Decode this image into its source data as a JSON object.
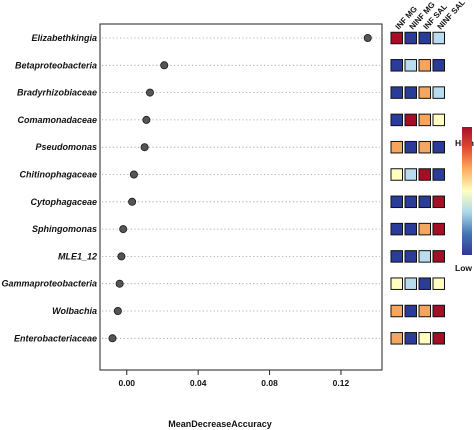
{
  "chart_data": {
    "type": "scatter",
    "title": "",
    "xlabel": "MeanDecreaseAccuracy",
    "ylabel": "",
    "xlim": [
      -0.015,
      0.143
    ],
    "x_ticks": [
      0.0,
      0.04,
      0.08,
      0.12
    ],
    "x_tick_labels": [
      "0.00",
      "0.04",
      "0.08",
      "0.12"
    ],
    "grid": "horizontal dotted lines per taxon",
    "point_color": "#555555",
    "categories": [
      "Elizabethkingia",
      "Betaproteobacteria",
      "Bradyrhizobiaceae",
      "Comamonadaceae",
      "Pseudomonas",
      "Chitinophagaceae",
      "Cytophagaceae",
      "Sphingomonas",
      "MLE1_12",
      "Gammaproteobacteria",
      "Wolbachia",
      "Enterobacteriaceae"
    ],
    "values": [
      0.135,
      0.021,
      0.013,
      0.011,
      0.01,
      0.004,
      0.003,
      -0.002,
      -0.003,
      -0.004,
      -0.005,
      -0.008
    ],
    "heatmap": {
      "columns": [
        "INF MG",
        "NINF MG",
        "INF SAL",
        "NINF SAL"
      ],
      "levels": [
        [
          4,
          0,
          0,
          1
        ],
        [
          0,
          1,
          3,
          0
        ],
        [
          0,
          0,
          3,
          1
        ],
        [
          0,
          4,
          3,
          2
        ],
        [
          3,
          0,
          3,
          0
        ],
        [
          2,
          1,
          4,
          0
        ],
        [
          0,
          0,
          0,
          4
        ],
        [
          0,
          0,
          3,
          4
        ],
        [
          0,
          0,
          1,
          4
        ],
        [
          2,
          1,
          0,
          2
        ],
        [
          3,
          0,
          3,
          4
        ],
        [
          3,
          0,
          2,
          4
        ]
      ],
      "level_colors": [
        "#2b3b9a",
        "#b9dcee",
        "#fffdc0",
        "#f5a55e",
        "#a50f26"
      ]
    },
    "legend": {
      "high_label": "High",
      "low_label": "Low",
      "placement": "right",
      "gradient": [
        "#a50f26",
        "#e34a33",
        "#fdae61",
        "#ffffbf",
        "#abd9e9",
        "#4575b4",
        "#313695"
      ]
    }
  }
}
